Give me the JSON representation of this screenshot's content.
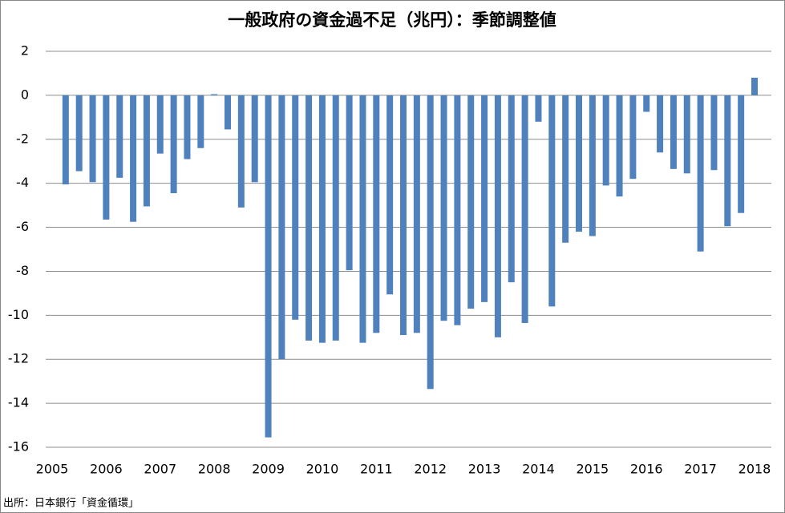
{
  "chart_data": {
    "type": "bar",
    "title": "一般政府の資金過不足（兆円）：季節調整値",
    "source": "出所：日本銀行「資金循環」",
    "color": "#4f81bd",
    "categories": [
      "2005",
      null,
      null,
      null,
      "2006",
      null,
      null,
      null,
      "2007",
      null,
      null,
      null,
      "2008",
      null,
      null,
      null,
      "2009",
      null,
      null,
      null,
      "2010",
      null,
      null,
      null,
      "2011",
      null,
      null,
      null,
      "2012",
      null,
      null,
      null,
      "2013",
      null,
      null,
      null,
      "2014",
      null,
      null,
      null,
      "2015",
      null,
      null,
      null,
      "2016",
      null,
      null,
      null,
      "2017",
      null,
      null,
      null,
      "2018"
    ],
    "values": [
      null,
      -4.05,
      -3.45,
      -3.95,
      -5.65,
      -3.75,
      -5.75,
      -5.05,
      -2.65,
      -4.45,
      -2.9,
      -2.4,
      0.05,
      -1.55,
      -5.1,
      -3.95,
      -15.55,
      -12.0,
      -10.2,
      -11.15,
      -11.25,
      -11.15,
      -7.95,
      -11.25,
      -10.8,
      -9.05,
      -10.9,
      -10.8,
      -13.35,
      -10.25,
      -10.45,
      -9.7,
      -9.4,
      -11.0,
      -8.5,
      -10.35,
      -1.2,
      -9.6,
      -6.7,
      -6.2,
      -6.4,
      -4.1,
      -4.6,
      -3.8,
      -0.75,
      -2.6,
      -3.35,
      -3.55,
      -7.1,
      -3.4,
      -5.95,
      -5.35,
      0.8
    ],
    "ylim": [
      -16,
      2
    ],
    "yticks": [
      -16,
      -14,
      -12,
      -10,
      -8,
      -6,
      -4,
      -2,
      0,
      2
    ],
    "grid": true
  }
}
